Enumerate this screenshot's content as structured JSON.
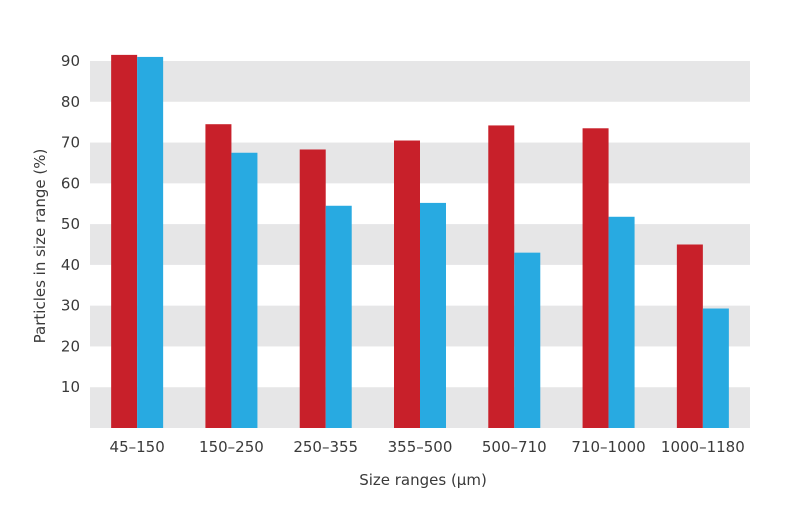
{
  "chart_data": {
    "type": "bar",
    "title": "",
    "xlabel": "Size ranges (μm)",
    "ylabel": "Particles in size range (%)",
    "categories": [
      "45–150",
      "150–250",
      "250–355",
      "355–500",
      "500–710",
      "710–1000",
      "1000–1180"
    ],
    "series": [
      {
        "color": "#c8202a",
        "values": [
          91.5,
          74.5,
          68.3,
          70.5,
          74.2,
          73.5,
          45.0
        ]
      },
      {
        "color": "#28aae1",
        "values": [
          91.0,
          67.5,
          54.5,
          55.2,
          43.0,
          51.8,
          29.3
        ]
      }
    ],
    "ylim": [
      0,
      90
    ],
    "yticks": [
      10,
      20,
      30,
      40,
      50,
      60,
      70,
      80,
      90
    ],
    "grid": "alternating horizontal bands",
    "legend": "none",
    "colors": {
      "band": "#e6e6e7",
      "background": "#ffffff"
    }
  }
}
